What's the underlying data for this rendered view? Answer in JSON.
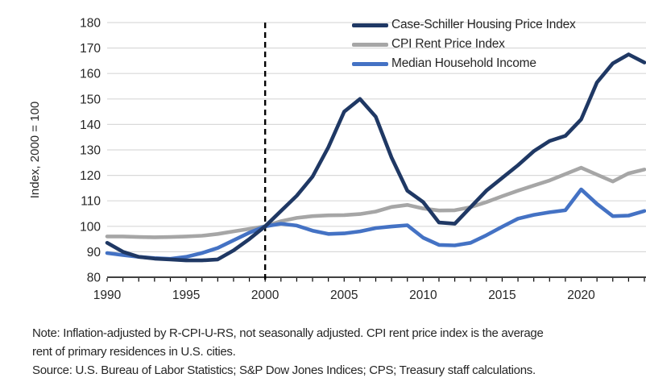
{
  "figure": {
    "note_lines": [
      "Note: Inflation-adjusted by R-CPI-U-RS, not seasonally adjusted. CPI rent price index is the average",
      "rent of primary residences in U.S. cities.",
      "Source: U.S. Bureau of Labor Statistics; S&P Dow Jones Indices; CPS; Treasury staff calculations."
    ]
  },
  "chart_data": {
    "type": "line",
    "title": "",
    "xlabel": "",
    "ylabel": "Index, 2000 = 100",
    "ylim": [
      80,
      180
    ],
    "y_tick_step": 10,
    "xlim": [
      1990,
      2024
    ],
    "x_labeled_ticks": [
      1990,
      1995,
      2000,
      2005,
      2010,
      2015,
      2020
    ],
    "grid": "horizontal",
    "legend_position": "top-right-inside",
    "reference_line": {
      "x": 2000,
      "style": "dashed",
      "color": "#000000"
    },
    "colors": {
      "gridline": "#d9d9d9",
      "axis": "#000000",
      "text": "#262626"
    },
    "x": [
      1990,
      1991,
      1992,
      1993,
      1994,
      1995,
      1996,
      1997,
      1998,
      1999,
      2000,
      2001,
      2002,
      2003,
      2004,
      2005,
      2006,
      2007,
      2008,
      2009,
      2010,
      2011,
      2012,
      2013,
      2014,
      2015,
      2016,
      2017,
      2018,
      2019,
      2020,
      2021,
      2022,
      2023,
      2024
    ],
    "series": [
      {
        "name": "Case-Schiller Housing Price Index",
        "color": "#1f3864",
        "values": [
          93.5,
          90,
          88,
          87.3,
          87,
          86.6,
          86.6,
          87,
          90.5,
          95,
          100,
          106,
          112,
          119.5,
          131,
          145,
          150,
          143,
          127,
          114,
          109.5,
          101.5,
          101,
          107.5,
          114,
          119,
          124,
          129.5,
          133.5,
          135.5,
          142,
          156.5,
          164,
          167.5,
          164.3
        ]
      },
      {
        "name": "CPI Rent Price Index",
        "color": "#a6a6a6",
        "values": [
          96,
          96,
          95.8,
          95.7,
          95.8,
          96,
          96.3,
          97,
          98,
          99,
          100,
          102,
          103.3,
          104,
          104.3,
          104.4,
          104.8,
          105.8,
          107.6,
          108.4,
          107,
          106.2,
          106.3,
          107.5,
          109.5,
          111.8,
          114,
          116,
          118,
          120.5,
          123,
          120.3,
          117.6,
          120.8,
          122.3
        ]
      },
      {
        "name": "Median Household Income",
        "color": "#4472c4",
        "values": [
          89.5,
          88.7,
          88,
          87.5,
          87.2,
          88,
          89.5,
          91.5,
          94.5,
          97.5,
          100,
          101,
          100.3,
          98.3,
          97,
          97.2,
          98,
          99.3,
          99.9,
          100.4,
          95.5,
          92.7,
          92.5,
          93.5,
          96.5,
          99.8,
          103,
          104.5,
          105.5,
          106.3,
          114.5,
          108.8,
          104,
          104.2,
          106
        ]
      }
    ]
  }
}
